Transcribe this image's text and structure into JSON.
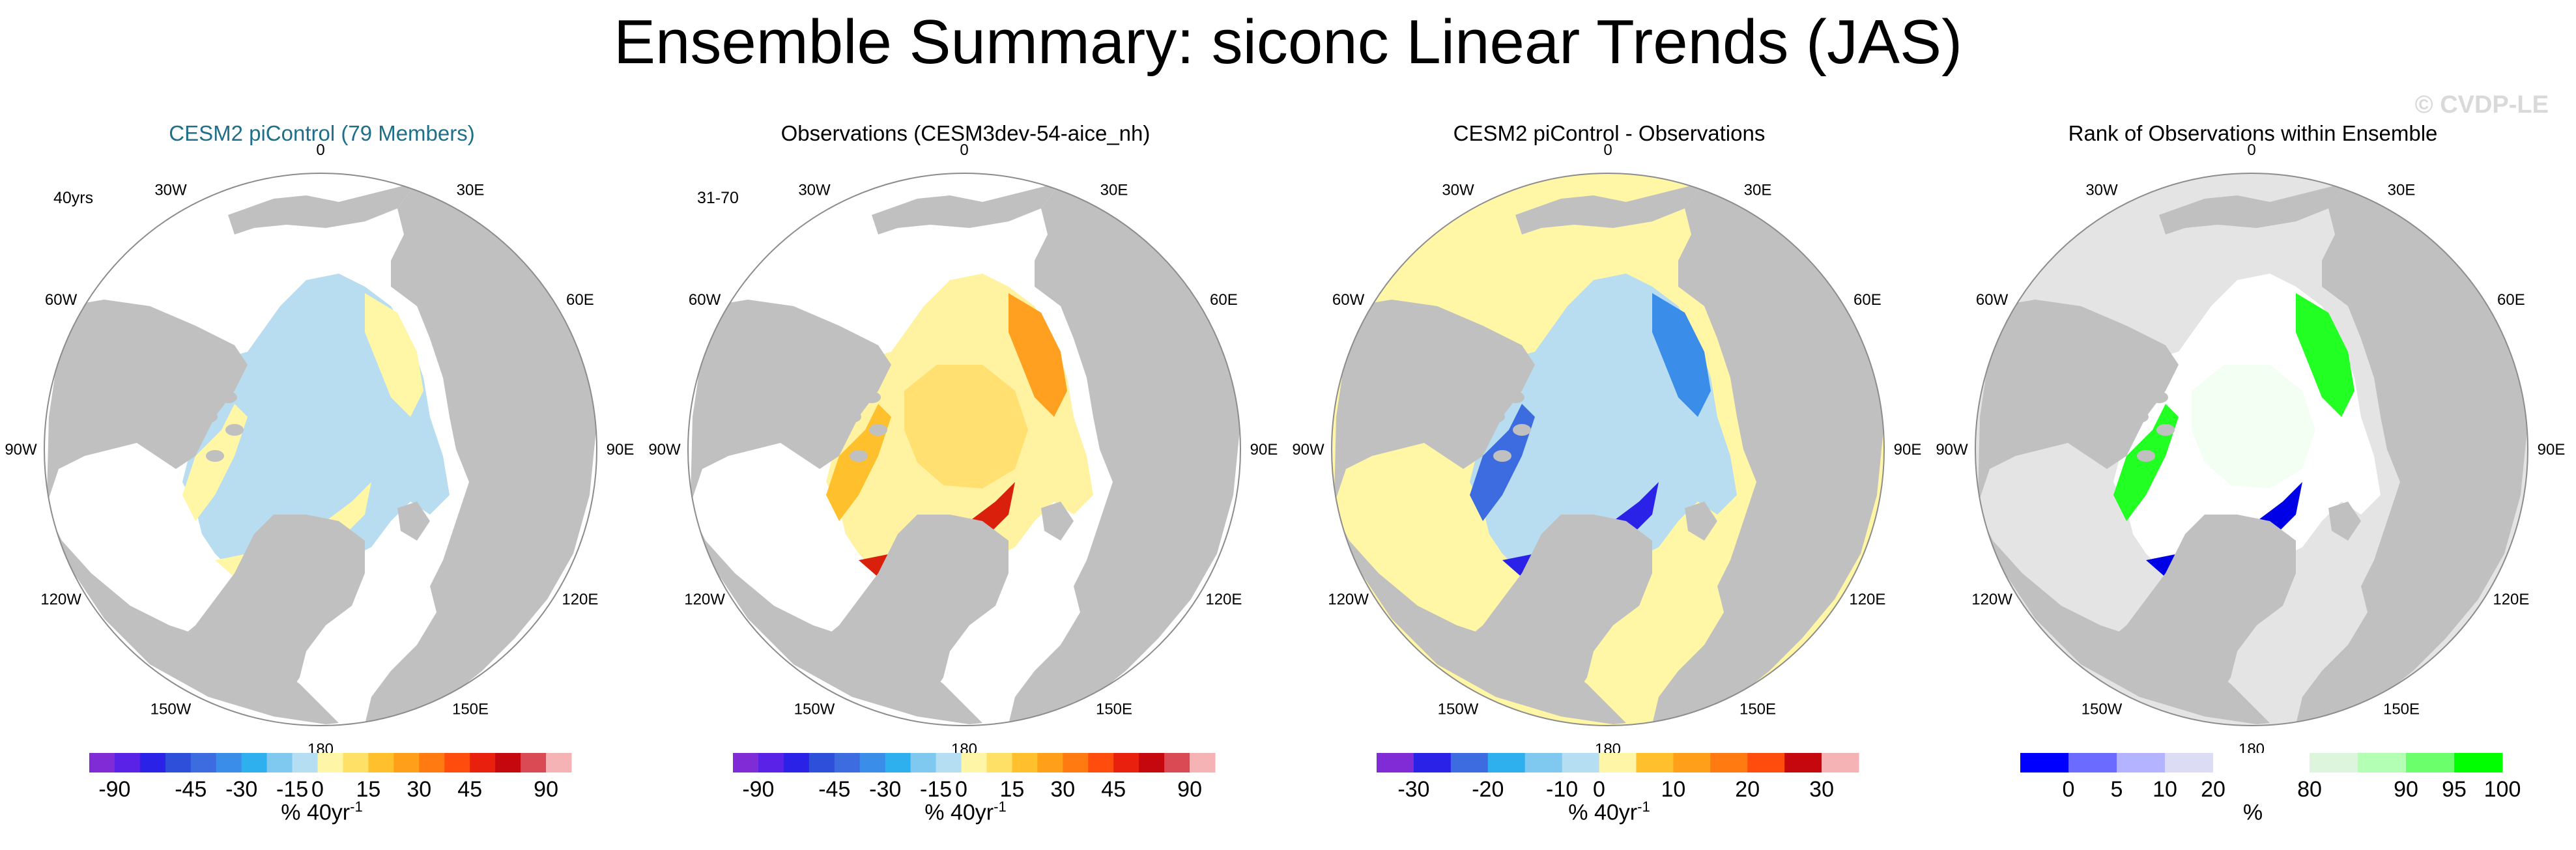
{
  "figure": {
    "title": "Ensemble Summary: siconc Linear Trends (JAS)",
    "watermark": "© CVDP-LE",
    "longitude_labels": [
      "180",
      "150W",
      "150E",
      "120W",
      "120E",
      "90W",
      "90E",
      "60W",
      "60E",
      "30W",
      "30E",
      "0"
    ]
  },
  "chart_data": [
    {
      "type": "heatmap",
      "projection": "north-polar-stereographic",
      "title": "CESM2 piControl (79 Members)",
      "corner_label": "40yrs",
      "units": "% 40yr",
      "units_exponent": "-1",
      "colorbar": {
        "colors": [
          "#7f2bd6",
          "#5a22e6",
          "#2a22e6",
          "#2e4fd9",
          "#3d6be0",
          "#3a8de8",
          "#2fb0ee",
          "#7fc8f0",
          "#b5def2",
          "#fff5a6",
          "#ffe066",
          "#ffc02e",
          "#ff9f1a",
          "#ff7a10",
          "#ff4d0d",
          "#e8200d",
          "#c4080d",
          "#d94a55",
          "#f5b3b5"
        ],
        "tick_labels": [
          "-90",
          "-45",
          "-30",
          "-15",
          "0",
          "15",
          "30",
          "45",
          "90"
        ]
      },
      "field_summary": "Mostly weak trends: light blue (-5 to 0) over the central Arctic, light yellow (0 to 5) around the marginal seas"
    },
    {
      "type": "heatmap",
      "projection": "north-polar-stereographic",
      "title": "Observations (CESM3dev-54-aice_nh)",
      "corner_label": "31-70",
      "units": "% 40yr",
      "units_exponent": "-1",
      "colorbar": {
        "colors": [
          "#7f2bd6",
          "#5a22e6",
          "#2a22e6",
          "#2e4fd9",
          "#3d6be0",
          "#3a8de8",
          "#2fb0ee",
          "#7fc8f0",
          "#b5def2",
          "#fff5a6",
          "#ffe066",
          "#ffc02e",
          "#ff9f1a",
          "#ff7a10",
          "#ff4d0d",
          "#e8200d",
          "#c4080d",
          "#d94a55",
          "#f5b3b5"
        ],
        "tick_labels": [
          "-90",
          "-45",
          "-30",
          "-15",
          "0",
          "15",
          "30",
          "45",
          "90"
        ]
      },
      "field_summary": "Positive trends (yellow to orange) across the Arctic basin, strongest (red) along the Eurasian shelf"
    },
    {
      "type": "heatmap",
      "projection": "north-polar-stereographic",
      "title": "CESM2 piControl - Observations",
      "corner_label": "",
      "units": "% 40yr",
      "units_exponent": "-1",
      "colorbar": {
        "colors": [
          "#7f2bd6",
          "#2a22e6",
          "#3d6be0",
          "#2fb0ee",
          "#7fc8f0",
          "#b5def2",
          "#fff5a6",
          "#ffc02e",
          "#ff9f1a",
          "#ff7a10",
          "#ff4d0d",
          "#c4080d",
          "#f5b3b5"
        ],
        "tick_labels": [
          "-30",
          "-20",
          "-10",
          "0",
          "10",
          "20",
          "30"
        ]
      },
      "field_summary": "Negative differences (blue) over the Arctic basin, darkest along the Eurasian shelf; light yellow over open ocean"
    },
    {
      "type": "heatmap",
      "projection": "north-polar-stereographic",
      "title": "Rank of Observations within Ensemble",
      "corner_label": "",
      "units": "%",
      "units_exponent": "",
      "colorbar": {
        "colors": [
          "#0000ff",
          "#6b6bff",
          "#b3b3ff",
          "#dcdcf5",
          "#ffffff",
          "#ffffff",
          "#dcf5dc",
          "#b3ffb3",
          "#6bff6b",
          "#00ff00"
        ],
        "tick_labels": [
          "0",
          "5",
          "10",
          "20",
          "80",
          "90",
          "95",
          "100"
        ]
      },
      "field_summary": "Mostly white (20-80) in the central Arctic, bright green (90-100) and deep blue (0-5) patches along the Siberian shelf and Canadian Archipelago"
    }
  ]
}
